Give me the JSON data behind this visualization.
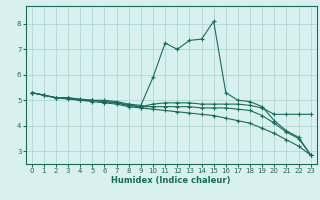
{
  "xlabel": "Humidex (Indice chaleur)",
  "bg_color": "#d8f0f0",
  "grid_color": "#b0d8d8",
  "line_color": "#1a6b5a",
  "xlim": [
    -0.5,
    23.5
  ],
  "ylim": [
    2.5,
    8.7
  ],
  "yticks": [
    3,
    4,
    5,
    6,
    7,
    8
  ],
  "xticks": [
    0,
    1,
    2,
    3,
    4,
    5,
    6,
    7,
    8,
    9,
    10,
    11,
    12,
    13,
    14,
    15,
    16,
    17,
    18,
    19,
    20,
    21,
    22,
    23
  ],
  "lines": [
    {
      "x": [
        0,
        1,
        2,
        3,
        4,
        5,
        6,
        7,
        8,
        9,
        10,
        11,
        12,
        13,
        14,
        15,
        16,
        17,
        18,
        19,
        20,
        21,
        22,
        23
      ],
      "y": [
        5.3,
        5.2,
        5.1,
        5.1,
        5.05,
        5.0,
        5.0,
        4.95,
        4.85,
        4.8,
        5.9,
        7.25,
        7.0,
        7.35,
        7.4,
        8.1,
        5.3,
        5.0,
        4.95,
        4.75,
        4.2,
        3.8,
        3.55,
        2.85
      ],
      "marker": true
    },
    {
      "x": [
        0,
        1,
        2,
        3,
        4,
        5,
        6,
        7,
        8,
        9,
        10,
        11,
        12,
        13,
        14,
        15,
        16,
        17,
        18,
        19,
        20,
        21,
        22,
        23
      ],
      "y": [
        5.3,
        5.2,
        5.1,
        5.1,
        5.0,
        5.0,
        4.95,
        4.9,
        4.8,
        4.75,
        4.85,
        4.9,
        4.9,
        4.9,
        4.85,
        4.85,
        4.85,
        4.85,
        4.8,
        4.7,
        4.45,
        4.45,
        4.45,
        4.45
      ],
      "marker": true
    },
    {
      "x": [
        0,
        1,
        2,
        3,
        4,
        5,
        6,
        7,
        8,
        9,
        10,
        11,
        12,
        13,
        14,
        15,
        16,
        17,
        18,
        19,
        20,
        21,
        22,
        23
      ],
      "y": [
        5.3,
        5.2,
        5.1,
        5.1,
        5.0,
        5.0,
        4.95,
        4.9,
        4.8,
        4.75,
        4.75,
        4.75,
        4.75,
        4.75,
        4.7,
        4.7,
        4.7,
        4.65,
        4.6,
        4.4,
        4.1,
        3.75,
        3.5,
        2.85
      ],
      "marker": true
    },
    {
      "x": [
        0,
        1,
        2,
        3,
        4,
        5,
        6,
        7,
        8,
        9,
        10,
        11,
        12,
        13,
        14,
        15,
        16,
        17,
        18,
        19,
        20,
        21,
        22,
        23
      ],
      "y": [
        5.3,
        5.2,
        5.1,
        5.05,
        5.0,
        4.95,
        4.9,
        4.85,
        4.75,
        4.7,
        4.65,
        4.6,
        4.55,
        4.5,
        4.45,
        4.4,
        4.3,
        4.2,
        4.1,
        3.9,
        3.7,
        3.45,
        3.2,
        2.85
      ],
      "marker": true
    }
  ]
}
